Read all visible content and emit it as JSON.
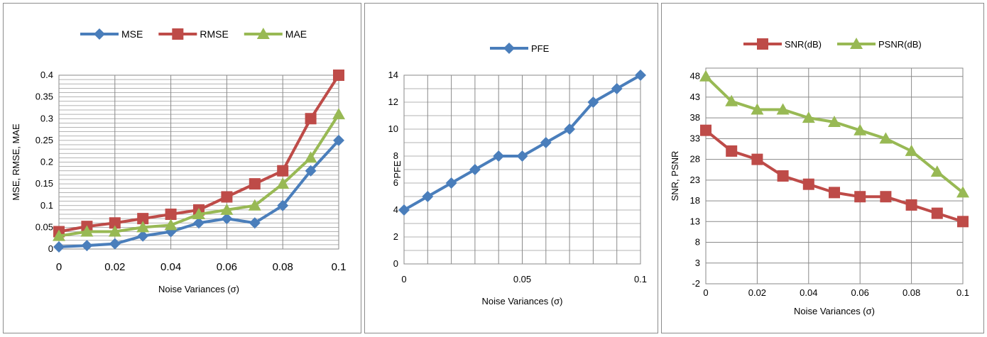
{
  "chart_data": [
    {
      "type": "line",
      "title": "",
      "xlabel": "Noise Variances (σ)",
      "ylabel": "MSE, RMSE, MAE",
      "x": [
        0,
        0.01,
        0.02,
        0.03,
        0.04,
        0.05,
        0.06,
        0.07,
        0.08,
        0.09,
        0.1
      ],
      "xlim": [
        0,
        0.1
      ],
      "ylim": [
        0,
        0.4
      ],
      "x_ticks": [
        "0",
        "0.02",
        "0.04",
        "0.06",
        "0.08",
        "0.1"
      ],
      "y_ticks": [
        "0",
        "0.05",
        "0.1",
        "0.15",
        "0.2",
        "0.25",
        "0.3",
        "0.35",
        "0.4"
      ],
      "grid": "major vertical and dense horizontal",
      "legend_position": "top",
      "series": [
        {
          "name": "MSE",
          "color": "#4a7ebb",
          "marker": "diamond",
          "values": [
            0.005,
            0.008,
            0.012,
            0.03,
            0.04,
            0.06,
            0.07,
            0.06,
            0.1,
            0.18,
            0.25
          ]
        },
        {
          "name": "RMSE",
          "color": "#be4b48",
          "marker": "square",
          "values": [
            0.04,
            0.052,
            0.06,
            0.07,
            0.08,
            0.09,
            0.12,
            0.15,
            0.18,
            0.3,
            0.4
          ]
        },
        {
          "name": "MAE",
          "color": "#98b954",
          "marker": "triangle",
          "values": [
            0.03,
            0.04,
            0.04,
            0.05,
            0.055,
            0.08,
            0.09,
            0.1,
            0.15,
            0.21,
            0.31
          ]
        }
      ]
    },
    {
      "type": "line",
      "title": "",
      "xlabel": "Noise Variances (σ)",
      "ylabel": "PFE",
      "x": [
        0,
        0.01,
        0.02,
        0.03,
        0.04,
        0.05,
        0.06,
        0.07,
        0.08,
        0.09,
        0.1
      ],
      "xlim": [
        0,
        0.1
      ],
      "ylim": [
        0,
        14
      ],
      "x_ticks": [
        "0",
        "0.05",
        "0.1"
      ],
      "y_ticks": [
        "0",
        "2",
        "4",
        "6",
        "8",
        "10",
        "12",
        "14"
      ],
      "grid": "vertical and horizontal",
      "legend_position": "top",
      "series": [
        {
          "name": "PFE",
          "color": "#4a7ebb",
          "marker": "diamond",
          "values": [
            4,
            5,
            6,
            7,
            8,
            8,
            9,
            10,
            12,
            13,
            14
          ]
        }
      ]
    },
    {
      "type": "line",
      "title": "",
      "xlabel": "Noise Variances (σ)",
      "ylabel": "SNR, PSNR",
      "x": [
        0,
        0.01,
        0.02,
        0.03,
        0.04,
        0.05,
        0.06,
        0.07,
        0.08,
        0.09,
        0.1
      ],
      "xlim": [
        0,
        0.1
      ],
      "ylim": [
        -2,
        50
      ],
      "x_ticks": [
        "0",
        "0.02",
        "0.04",
        "0.06",
        "0.08",
        "0.1"
      ],
      "y_ticks": [
        "-2",
        "3",
        "8",
        "13",
        "18",
        "23",
        "28",
        "33",
        "38",
        "43",
        "48"
      ],
      "grid": "vertical and horizontal",
      "legend_position": "top",
      "series": [
        {
          "name": "SNR(dB)",
          "color": "#be4b48",
          "marker": "square",
          "values": [
            35,
            30,
            28,
            24,
            22,
            20,
            19,
            19,
            17,
            15,
            13
          ]
        },
        {
          "name": "PSNR(dB)",
          "color": "#98b954",
          "marker": "triangle",
          "values": [
            48,
            42,
            40,
            40,
            38,
            37,
            35,
            33,
            30,
            25,
            20
          ]
        }
      ]
    }
  ]
}
